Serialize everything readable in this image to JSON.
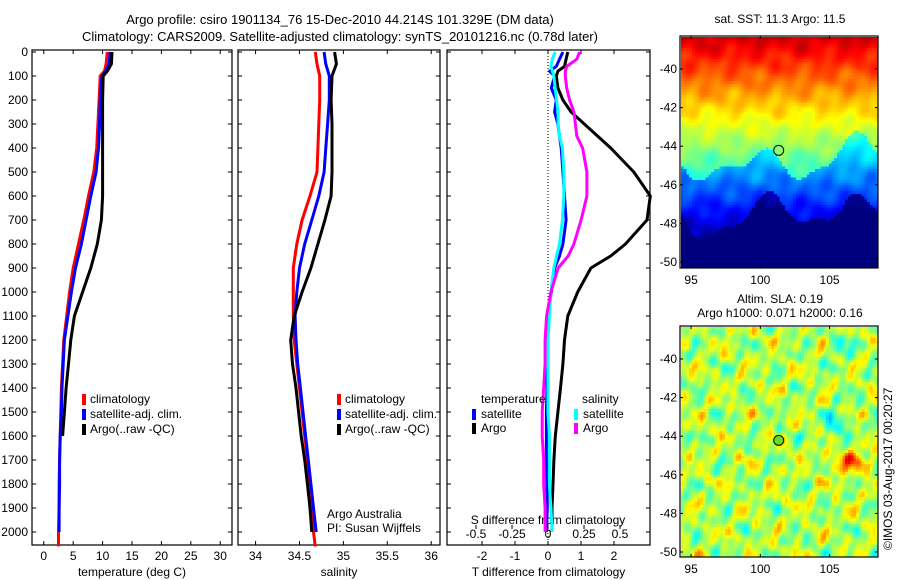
{
  "header": {
    "title_line1": "Argo profile: csiro 1901134_76 15-Dec-2010 44.214S 101.329E (DM data)",
    "title_line2": "Climatology: CARS2009. Satellite-adjusted climatology: synTS_20101216.nc (0.78d later)"
  },
  "colors": {
    "climatology": "#ff0000",
    "satellite": "#0000ff",
    "argo": "#000000",
    "sal_satellite": "#00ffff",
    "sal_argo": "#ff00ff"
  },
  "chart_data": [
    {
      "type": "line",
      "name": "temperature-profile",
      "xlabel": "temperature (deg C)",
      "ylabel": "",
      "xlim": [
        -2,
        32
      ],
      "ylim": [
        2060,
        0
      ],
      "xticks": [
        0,
        5,
        10,
        15,
        20,
        25,
        30
      ],
      "yticks": [
        0,
        100,
        200,
        300,
        400,
        500,
        600,
        700,
        800,
        900,
        1000,
        1100,
        1200,
        1300,
        1400,
        1500,
        1600,
        1700,
        1800,
        1900,
        2000
      ],
      "legend": {
        "position": "center",
        "entries": [
          "climatology",
          "satellite-adj. clim.",
          "Argo(..raw -QC)"
        ]
      },
      "depth": [
        0,
        50,
        80,
        100,
        200,
        300,
        400,
        500,
        600,
        700,
        800,
        900,
        1000,
        1100,
        1200,
        1300,
        1400,
        1500,
        1600,
        1700,
        1800,
        1900,
        2000,
        2060
      ],
      "series": [
        {
          "name": "climatology",
          "color_key": "climatology",
          "values": [
            10.8,
            10.6,
            10.3,
            9.6,
            9.4,
            9.2,
            9.0,
            8.5,
            7.6,
            6.8,
            5.9,
            5.0,
            4.4,
            3.9,
            3.4,
            3.2,
            3.0,
            2.9,
            2.8,
            2.7,
            2.6,
            2.6,
            2.5,
            2.5
          ]
        },
        {
          "name": "satellite-adj. clim.",
          "color_key": "satellite",
          "values": [
            11.3,
            11.1,
            10.5,
            9.9,
            9.6,
            9.5,
            9.3,
            8.9,
            8.0,
            7.2,
            6.4,
            5.4,
            4.7,
            4.1,
            3.5,
            3.3,
            3.1,
            3.0,
            2.8,
            2.7,
            2.7,
            2.6,
            2.6,
            null
          ]
        },
        {
          "name": "Argo(..raw -QC)",
          "color_key": "argo",
          "values": [
            11.6,
            11.5,
            10.8,
            10.1,
            10.0,
            10.0,
            10.0,
            10.0,
            10.0,
            9.8,
            9.1,
            8.0,
            6.6,
            5.2,
            4.6,
            4.2,
            3.8,
            3.5,
            3.2,
            null,
            null,
            null,
            null,
            null
          ]
        }
      ]
    },
    {
      "type": "line",
      "name": "salinity-profile",
      "xlabel": "salinity",
      "xlim": [
        33.8,
        36.1
      ],
      "ylim": [
        2060,
        0
      ],
      "xticks": [
        34,
        34.5,
        35,
        35.5,
        36
      ],
      "legend": {
        "position": "center-right",
        "entries": [
          "climatology",
          "satellite-adj. clim.",
          "Argo(..raw -QC)"
        ]
      },
      "annotation": [
        "Argo Australia",
        "PI: Susan Wijffels"
      ],
      "depth": [
        0,
        50,
        100,
        200,
        300,
        400,
        500,
        600,
        700,
        800,
        900,
        1000,
        1100,
        1200,
        1300,
        1400,
        1500,
        1600,
        1700,
        1800,
        1900,
        2000,
        2060
      ],
      "series": [
        {
          "name": "climatology",
          "color_key": "climatology",
          "values": [
            34.68,
            34.7,
            34.73,
            34.73,
            34.72,
            34.71,
            34.7,
            34.62,
            34.53,
            34.47,
            34.43,
            34.43,
            34.43,
            34.44,
            34.47,
            34.5,
            34.53,
            34.56,
            34.59,
            34.61,
            34.64,
            34.66,
            34.68
          ]
        },
        {
          "name": "satellite-adj. clim.",
          "color_key": "satellite",
          "values": [
            34.78,
            34.8,
            34.84,
            34.84,
            34.82,
            34.8,
            34.78,
            34.72,
            34.64,
            34.56,
            34.5,
            34.47,
            34.45,
            34.46,
            34.48,
            34.51,
            34.54,
            34.57,
            34.6,
            34.63,
            34.66,
            34.69,
            null
          ]
        },
        {
          "name": "Argo(..raw -QC)",
          "color_key": "argo",
          "values": [
            34.9,
            34.92,
            34.87,
            34.86,
            34.87,
            34.87,
            34.87,
            34.86,
            34.79,
            34.71,
            34.63,
            34.53,
            34.44,
            34.4,
            34.42,
            34.46,
            34.49,
            34.52,
            34.56,
            34.59,
            34.62,
            34.64,
            null
          ]
        }
      ]
    },
    {
      "type": "line",
      "name": "difference-profile",
      "xlabel": "T difference from climatology",
      "xlabel2": "S difference from climatology",
      "xlim": [
        -3,
        3.1
      ],
      "ylim": [
        2060,
        0
      ],
      "xticks": [
        -2,
        -1,
        0,
        1,
        2
      ],
      "xticks2": [
        -0.5,
        -0.25,
        0,
        0.25,
        0.5
      ],
      "legend": {
        "position": "center",
        "group1_title": "temperature",
        "group2_title": "salinity",
        "entries": [
          "satellite",
          "Argo",
          "satellite",
          "Argo"
        ]
      },
      "zero_line": true,
      "depth": [
        0,
        30,
        60,
        80,
        100,
        150,
        200,
        250,
        300,
        350,
        400,
        500,
        600,
        700,
        800,
        850,
        900,
        1000,
        1100,
        1200,
        1300,
        1400,
        1500,
        1600,
        1700,
        1800,
        1900,
        2000
      ],
      "series": [
        {
          "name": "temperature satellite",
          "color_key": "satellite",
          "units": "T",
          "values": [
            0.45,
            0.35,
            0.25,
            0.05,
            0.2,
            0.1,
            0.25,
            0.2,
            0.3,
            0.35,
            0.4,
            0.45,
            0.5,
            0.55,
            0.45,
            0.35,
            0.2,
            0.1,
            0.0,
            -0.02,
            -0.03,
            -0.03,
            -0.05,
            -0.05,
            -0.05,
            -0.03,
            -0.02,
            -0.05
          ]
        },
        {
          "name": "temperature Argo",
          "color_key": "argo",
          "units": "T",
          "values": [
            0.6,
            0.55,
            0.5,
            0.3,
            0.25,
            0.3,
            0.45,
            0.7,
            1.1,
            1.5,
            1.9,
            2.6,
            3.1,
            3.0,
            2.35,
            1.9,
            1.3,
            0.9,
            0.6,
            0.5,
            0.45,
            0.38,
            0.3,
            0.22,
            0.18,
            0.15,
            0.12,
            0.12
          ]
        },
        {
          "name": "salinity satellite",
          "color_key": "sal_satellite",
          "units": "S",
          "values": [
            0.05,
            0.03,
            0.02,
            0.03,
            0.04,
            0.05,
            0.06,
            0.07,
            0.07,
            0.08,
            0.1,
            0.11,
            0.11,
            0.1,
            0.08,
            0.06,
            0.04,
            0.02,
            0.01,
            0.0,
            0.0,
            0.0,
            0.0,
            0.01,
            0.01,
            0.01,
            0.02,
            0.03
          ]
        },
        {
          "name": "salinity Argo",
          "color_key": "sal_argo",
          "units": "S",
          "values": [
            0.22,
            0.2,
            0.13,
            0.12,
            0.12,
            0.13,
            0.15,
            0.18,
            0.19,
            0.2,
            0.24,
            0.27,
            0.27,
            0.23,
            0.18,
            0.14,
            0.07,
            0.02,
            -0.01,
            -0.02,
            -0.02,
            -0.03,
            -0.04,
            -0.04,
            -0.03,
            -0.03,
            -0.02,
            -0.02
          ]
        }
      ]
    },
    {
      "type": "heatmap",
      "name": "sst-map",
      "title": "sat. SST: 11.3 Argo: 11.5",
      "xlim": [
        94.2,
        108.5
      ],
      "ylim": [
        -50.1,
        -38.2
      ],
      "xticks": [
        95,
        100,
        105
      ],
      "yticks": [
        -40,
        -42,
        -44,
        -46,
        -48,
        -50
      ],
      "marker": {
        "lon": 101.329,
        "lat": -44.214,
        "style": "open circle"
      },
      "colormap": "jet",
      "description": "warm (red/orange) in the north around -39, yellow to green front near -44 to -45, cyan/blue south of -46, dark blue south of -48"
    },
    {
      "type": "heatmap",
      "name": "sla-map",
      "title_line1": "Altim. SLA: 0.19",
      "title_line2": "Argo h1000: 0.071 h2000: 0.16",
      "xlim": [
        94.2,
        108.5
      ],
      "ylim": [
        -50.1,
        -38.2
      ],
      "xticks": [
        95,
        100,
        105
      ],
      "yticks": [
        -40,
        -42,
        -44,
        -46,
        -48,
        -50
      ],
      "marker": {
        "lon": 101.329,
        "lat": -44.214,
        "style": "filled circle",
        "fill": "#66dd22"
      },
      "colormap": "jet",
      "description": "mostly green field with yellow/orange highs and teal lows; orange high near 106E -45S"
    }
  ],
  "footer": {
    "credit": "©IMOS 03-Aug-2017 00:20:27"
  }
}
